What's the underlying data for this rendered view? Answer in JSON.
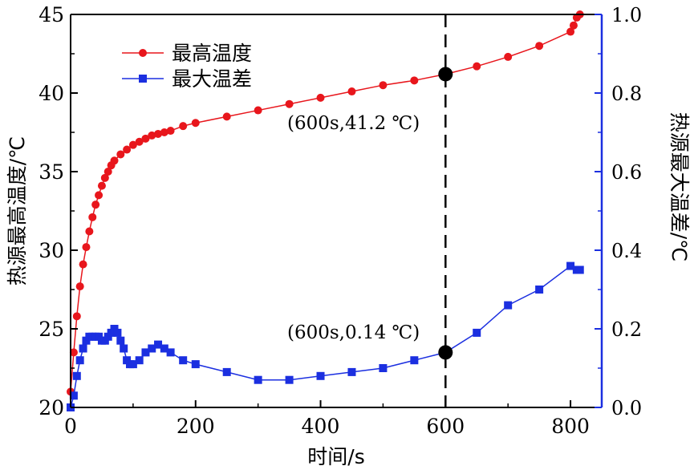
{
  "chart_data": {
    "type": "line",
    "xlabel": "时间/s",
    "ylabel_left": "热源最高温度/℃",
    "ylabel_right": "热源最大温差/℃",
    "xlim": [
      0,
      850
    ],
    "ylim_left": [
      20,
      45
    ],
    "ylim_right": [
      0.0,
      1.0
    ],
    "xticks": [
      "0",
      "200",
      "400",
      "600",
      "800"
    ],
    "yticks_left": [
      "20",
      "25",
      "30",
      "35",
      "40",
      "45"
    ],
    "yticks_right": [
      "0.0",
      "0.2",
      "0.4",
      "0.6",
      "0.8",
      "1.0"
    ],
    "legend_position": "top-left",
    "grid": false,
    "series": [
      {
        "name": "最高温度",
        "axis": "left",
        "color": "#e8161c",
        "marker": "circle",
        "x": [
          0,
          5,
          10,
          15,
          20,
          25,
          30,
          35,
          40,
          45,
          50,
          55,
          60,
          65,
          70,
          80,
          90,
          100,
          110,
          120,
          130,
          140,
          150,
          160,
          180,
          200,
          250,
          300,
          350,
          400,
          450,
          500,
          550,
          600,
          650,
          700,
          750,
          800,
          805,
          810,
          815
        ],
        "values": [
          21.0,
          23.5,
          25.8,
          27.7,
          29.1,
          30.2,
          31.2,
          32.1,
          32.9,
          33.5,
          34.1,
          34.6,
          35.0,
          35.4,
          35.7,
          36.1,
          36.4,
          36.7,
          36.9,
          37.1,
          37.3,
          37.4,
          37.5,
          37.6,
          37.9,
          38.1,
          38.5,
          38.9,
          39.3,
          39.7,
          40.1,
          40.5,
          40.8,
          41.2,
          41.7,
          42.3,
          43.0,
          43.9,
          44.3,
          44.8,
          45.0
        ]
      },
      {
        "name": "最大温差",
        "axis": "right",
        "color": "#1b2fe0",
        "marker": "square",
        "x": [
          0,
          5,
          10,
          15,
          20,
          25,
          30,
          35,
          40,
          45,
          50,
          55,
          60,
          65,
          70,
          75,
          80,
          85,
          90,
          95,
          100,
          110,
          120,
          130,
          140,
          150,
          160,
          180,
          200,
          250,
          300,
          350,
          400,
          450,
          500,
          550,
          600,
          650,
          700,
          750,
          800,
          810,
          815
        ],
        "values": [
          0.0,
          0.03,
          0.08,
          0.12,
          0.15,
          0.17,
          0.18,
          0.18,
          0.18,
          0.18,
          0.17,
          0.17,
          0.18,
          0.19,
          0.2,
          0.19,
          0.17,
          0.15,
          0.12,
          0.11,
          0.11,
          0.12,
          0.14,
          0.15,
          0.16,
          0.15,
          0.14,
          0.12,
          0.11,
          0.09,
          0.07,
          0.07,
          0.08,
          0.09,
          0.1,
          0.12,
          0.14,
          0.19,
          0.26,
          0.3,
          0.36,
          0.35,
          0.35
        ]
      }
    ],
    "marker_line": {
      "x": 600
    },
    "highlight_points": [
      {
        "label": "(600s,41.2 ℃)",
        "x": 600,
        "y": 41.2,
        "axis": "left"
      },
      {
        "label": "(600s,0.14 ℃)",
        "x": 600,
        "y": 0.14,
        "axis": "right"
      }
    ]
  }
}
